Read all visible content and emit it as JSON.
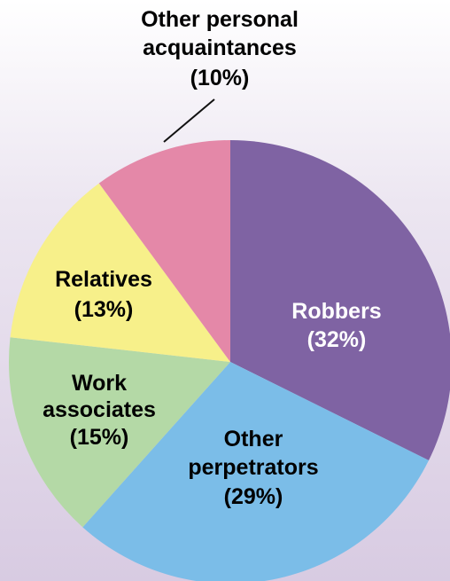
{
  "chart_data": {
    "type": "pie",
    "slices": [
      {
        "label": "Robbers",
        "value": 32,
        "value_text": "(32%)",
        "color": "#7f63a3",
        "text_color": "#ffffff"
      },
      {
        "label": "Other perpetrators",
        "value": 29,
        "value_text": "(29%)",
        "color": "#7bbde8",
        "text_color": "#1a1a1a"
      },
      {
        "label": "Work associates",
        "value": 15,
        "value_text": "(15%)",
        "color": "#b4d9a6",
        "text_color": "#1a1a1a"
      },
      {
        "label": "Relatives",
        "value": 13,
        "value_text": "(13%)",
        "color": "#f7f08a",
        "text_color": "#1a1a1a"
      },
      {
        "label": "Other personal acquaintances",
        "value": 10,
        "value_text": "(10%)",
        "color": "#e488a8",
        "text_color": "#1a1a1a"
      }
    ],
    "start_angle_deg": 0,
    "direction": "clockwise",
    "labels": {
      "robbers": [
        "Robbers",
        "(32%)"
      ],
      "other_perpetrators": [
        "Other",
        "perpetrators",
        "(29%)"
      ],
      "work_associates": [
        "Work",
        "associates",
        "(15%)"
      ],
      "relatives": [
        "Relatives",
        "(13%)"
      ],
      "other_personal": [
        "Other personal",
        "acquaintances",
        "(10%)"
      ]
    }
  }
}
